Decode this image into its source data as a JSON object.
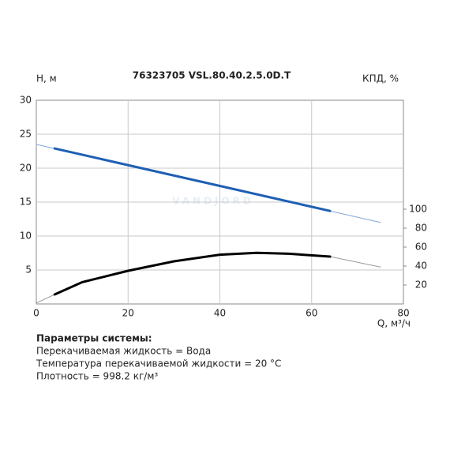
{
  "chart_data": {
    "type": "line",
    "title": "76323705 VSL.80.40.2.5.0D.T",
    "y_label": "H, м",
    "y2_label": "КПД, %",
    "x_label": "Q, м³/ч",
    "watermark": "VANDJORD",
    "xlim": [
      0,
      80
    ],
    "xticks": [
      0,
      20,
      40,
      60,
      80
    ],
    "ylim": [
      0,
      30
    ],
    "yticks": [
      5,
      10,
      15,
      20,
      25,
      30
    ],
    "y2lim": [
      0,
      215
    ],
    "y2ticks": [
      20,
      40,
      60,
      80,
      100
    ],
    "grid": true,
    "series": [
      {
        "color": "#7fa8d8",
        "line_width": 1,
        "x": [
          0,
          75
        ],
        "values": [
          23.5,
          12
        ]
      },
      {
        "color": "#1e5fb4",
        "line_width": 3,
        "x": [
          4,
          64
        ],
        "values": [
          22.9,
          13.7
        ]
      },
      {
        "color": "#999999",
        "line_width": 1,
        "axis": "y2",
        "x": [
          0,
          4,
          10,
          20,
          30,
          40,
          48,
          55,
          64,
          75
        ],
        "values": [
          1,
          10,
          23,
          35,
          45,
          52,
          54,
          53,
          50,
          39
        ]
      },
      {
        "color": "#000000",
        "line_width": 3,
        "axis": "y2",
        "x": [
          4,
          10,
          20,
          30,
          40,
          48,
          55,
          64
        ],
        "values": [
          10,
          23,
          35,
          45,
          52,
          54,
          53,
          50
        ]
      }
    ]
  },
  "notes": {
    "heading": "Параметры системы:",
    "lines": [
      "Перекачиваемая жидкость = Вода",
      "Температура перекачиваемой жидкости = 20 °C",
      "Плотность = 998.2 кг/м³"
    ]
  }
}
